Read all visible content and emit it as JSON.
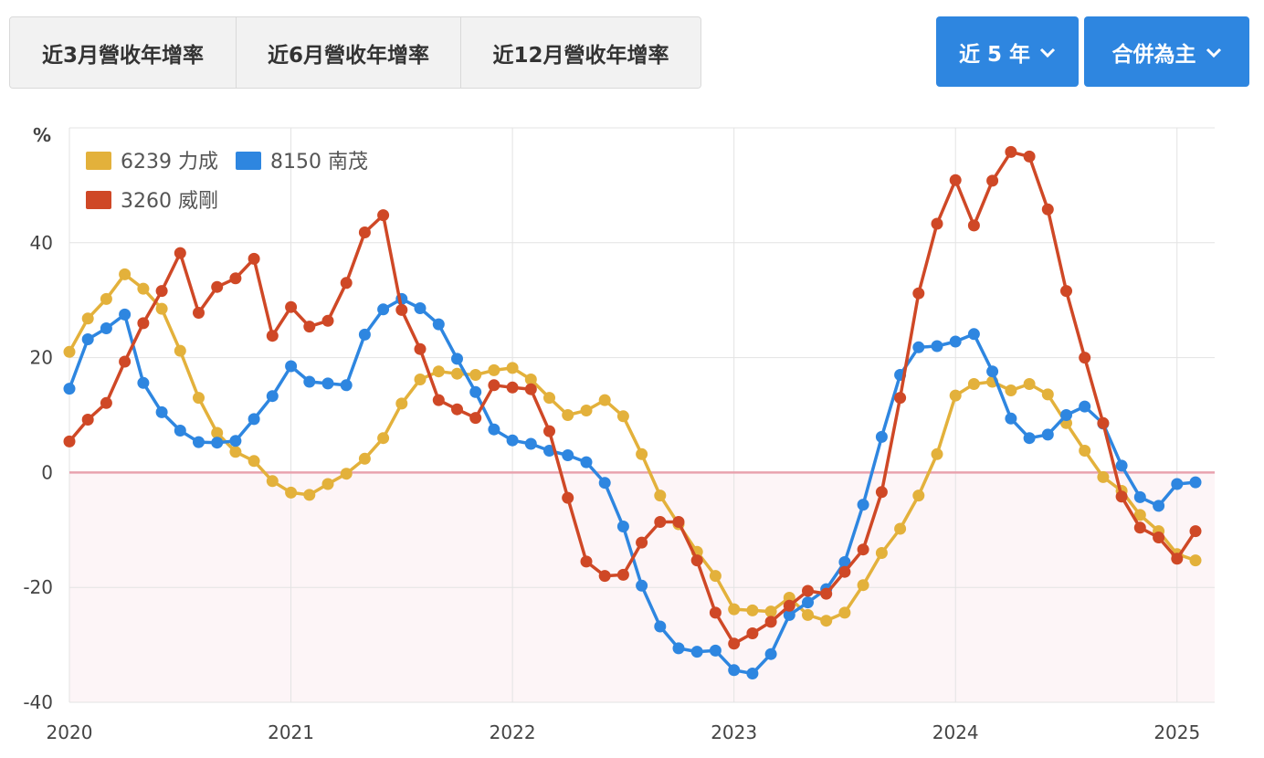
{
  "tabs": [
    {
      "label": "近3月營收年增率",
      "active": true
    },
    {
      "label": "近6月營收年增率",
      "active": false
    },
    {
      "label": "近12月營收年增率",
      "active": false
    }
  ],
  "dropdowns": {
    "years": "近 5 年",
    "consolidation": "合併為主"
  },
  "colors": {
    "accent": "#2e86e0",
    "zero_line": "#e8a2ae",
    "negative_band": "#fdf5f7"
  },
  "chart_data": {
    "type": "line",
    "ylabel": "%",
    "ylim": [
      -40,
      60
    ],
    "yticks": [
      -40,
      -20,
      0,
      20,
      40
    ],
    "xlim": [
      2020,
      2025.17
    ],
    "xticks": [
      "2020",
      "2021",
      "2022",
      "2023",
      "2024",
      "2025"
    ],
    "grid": true,
    "legend_position": "top-left",
    "x_start": 2020.0,
    "x_step_months": 1,
    "series": [
      {
        "name": "6239 力成",
        "color": "#e3b13b",
        "values": [
          21,
          26.8,
          30.2,
          34.5,
          32,
          28.5,
          21.2,
          13,
          6.9,
          3.6,
          2,
          -1.5,
          -3.5,
          -3.9,
          -2,
          -0.2,
          2.4,
          6,
          12,
          16.2,
          17.6,
          17.2,
          17,
          17.8,
          18.2,
          16.2,
          13,
          10,
          10.8,
          12.6,
          9.8,
          3.2,
          -4,
          -9,
          -13.8,
          -18,
          -23.8,
          -24,
          -24.2,
          -21.8,
          -24.8,
          -25.8,
          -24.4,
          -19.6,
          -14,
          -9.8,
          -4,
          3.2,
          13.4,
          15.4,
          15.8,
          14.3,
          15.4,
          13.6,
          8.6,
          3.8,
          -0.8,
          -3.2,
          -7.4,
          -10.2,
          -14.2,
          -15.3
        ]
      },
      {
        "name": "8150 南茂",
        "color": "#2e86e0",
        "values": [
          14.6,
          23.2,
          25.1,
          27.5,
          15.6,
          10.5,
          7.3,
          5.3,
          5.2,
          5.5,
          9.3,
          13.3,
          18.5,
          15.8,
          15.5,
          15.2,
          24,
          28.4,
          30.2,
          28.6,
          25.8,
          19.8,
          14,
          7.5,
          5.6,
          5,
          3.8,
          3,
          1.8,
          -1.8,
          -9.4,
          -19.7,
          -26.8,
          -30.6,
          -31.2,
          -31,
          -34.4,
          -35,
          -31.6,
          -24.8,
          -22.6,
          -20.3,
          -15.6,
          -5.6,
          6.2,
          17,
          21.8,
          22,
          22.8,
          24.1,
          17.6,
          9.4,
          6,
          6.6,
          10,
          11.5,
          8.5,
          1.2,
          -4.3,
          -5.8,
          -2,
          -1.7
        ]
      },
      {
        "name": "3260 威剛",
        "color": "#cf4826",
        "values": [
          5.4,
          9.2,
          12.1,
          19.3,
          26,
          31.6,
          38.2,
          27.8,
          32.3,
          33.8,
          37.2,
          23.8,
          28.8,
          25.4,
          26.4,
          33,
          41.8,
          44.8,
          28.3,
          21.5,
          12.6,
          11,
          9.5,
          15.2,
          14.8,
          14.5,
          7.2,
          -4.4,
          -15.5,
          -18,
          -17.8,
          -12.2,
          -8.6,
          -8.6,
          -15.3,
          -24.4,
          -29.8,
          -28,
          -26,
          -23.2,
          -20.6,
          -21.1,
          -17.3,
          -13.4,
          -3.4,
          13,
          31.2,
          43.3,
          50.9,
          43,
          50.8,
          55.8,
          55,
          45.8,
          31.6,
          20,
          8.6,
          -4.2,
          -9.6,
          -11.3,
          -15,
          -10.2
        ]
      }
    ]
  }
}
